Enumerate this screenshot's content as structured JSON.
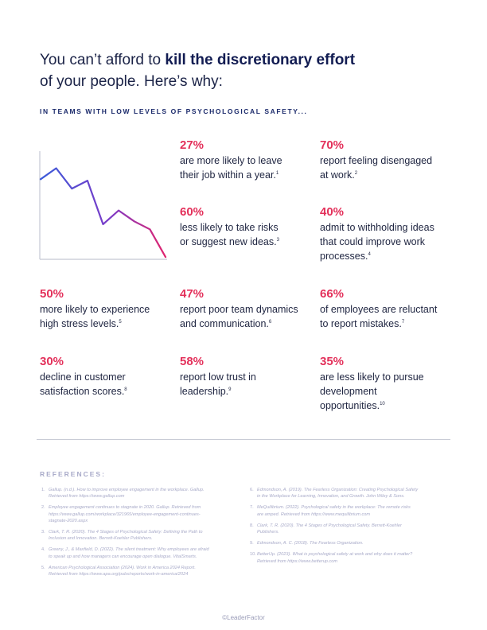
{
  "headline": {
    "lead": "You can’t afford to ",
    "bold": "kill the discretionary effort",
    "line2": "of your people. Here’s why:"
  },
  "subheading": "IN TEAMS WITH LOW LEVELS OF PSYCHOLOGICAL SAFETY...",
  "colors": {
    "accent": "#e3305a",
    "navy": "#1b2347",
    "line_start": "#3a5bd9",
    "line_end": "#e0246e"
  },
  "chart_data": {
    "type": "line",
    "values": [
      98,
      113,
      85,
      96,
      36,
      55,
      40,
      29,
      -9
    ],
    "ylim": [
      -10,
      130
    ],
    "grid": false,
    "title": "",
    "xlabel": "",
    "ylabel": ""
  },
  "stats": [
    {
      "pct": "27%",
      "lines": [
        "are more likely to leave",
        "their job within a year."
      ],
      "note": "1"
    },
    {
      "pct": "70%",
      "lines": [
        "report feeling disengaged",
        "at work."
      ],
      "note": "2"
    },
    {
      "pct": "60%",
      "lines": [
        "less likely to take risks",
        "or suggest new ideas."
      ],
      "note": "3"
    },
    {
      "pct": "40%",
      "lines": [
        "admit to withholding ideas",
        "that could improve work",
        "processes."
      ],
      "note": "4"
    },
    {
      "pct": "50%",
      "lines": [
        "more likely to experience",
        "high stress levels."
      ],
      "note": "5"
    },
    {
      "pct": "47%",
      "lines": [
        "report poor team dynamics",
        "and communication."
      ],
      "note": "6"
    },
    {
      "pct": "66%",
      "lines": [
        "of employees are reluctant",
        "to report mistakes."
      ],
      "note": "7"
    },
    {
      "pct": "30%",
      "lines": [
        "decline in customer",
        "satisfaction scores."
      ],
      "note": "8"
    },
    {
      "pct": "58%",
      "lines": [
        "report low trust in",
        "leadership."
      ],
      "note": "9"
    },
    {
      "pct": "35%",
      "lines": [
        "are less likely to pursue",
        "development",
        "opportunities."
      ],
      "note": "10"
    }
  ],
  "references_title": "REFERENCES:",
  "references": [
    {
      "num": "1.",
      "lines": [
        "Gallup. (n.d.). How to improve employee engagement in the workplace. Gallup.",
        "Retrieved from https://www.gallup.com"
      ]
    },
    {
      "num": "2.",
      "lines": [
        "Employee engagement continues to stagnate in 2020. Gallup. Retrieved from",
        "https://www.gallup.com/workplace/321965/employee-engagement-continues-",
        "stagnate-2020.aspx"
      ]
    },
    {
      "num": "3.",
      "lines": [
        "Clark, T. R. (2020). The 4 Stages of Psychological Safety: Defining the Path to",
        "Inclusion and Innovation. Berrett-Koehler Publishers."
      ]
    },
    {
      "num": "4.",
      "lines": [
        "Greeny, J., & Maxfield, D. (2022). The silent treatment: Why employees are afraid",
        "to speak up and how managers can encourage open dialogue. VitalSmarts."
      ]
    },
    {
      "num": "5.",
      "lines": [
        "American Psychological Association (2024). Work in America 2024 Report.",
        "Retrieved from https://www.apa.org/pubs/reports/work-in-america/2024"
      ]
    },
    {
      "num": "6.",
      "lines": [
        "Edmondson, A. (2019). The Fearless Organization: Creating Psychological Safety",
        "in the Workplace for Learning, Innovation, and Growth. John Wiley & Sons."
      ]
    },
    {
      "num": "7.",
      "lines": [
        "MeQuilibrium. (2022). Psychological safety in the workplace: The remote risks",
        "are amped. Retrieved from https://www.mequilibrium.com"
      ]
    },
    {
      "num": "8.",
      "lines": [
        "Clark, T. R. (2020). The 4 Stages of Psychological Safety. Berrett-Koehler",
        "Publishers."
      ]
    },
    {
      "num": "9.",
      "lines": [
        "Edmondson, A. C. (2018). The Fearless Organization."
      ]
    },
    {
      "num": "10.",
      "lines": [
        "BetterUp. (2023). What is psychological safety at work and why does it matter?",
        "Retrieved from https://www.betterup.com"
      ]
    }
  ],
  "footer": "©LeaderFactor"
}
